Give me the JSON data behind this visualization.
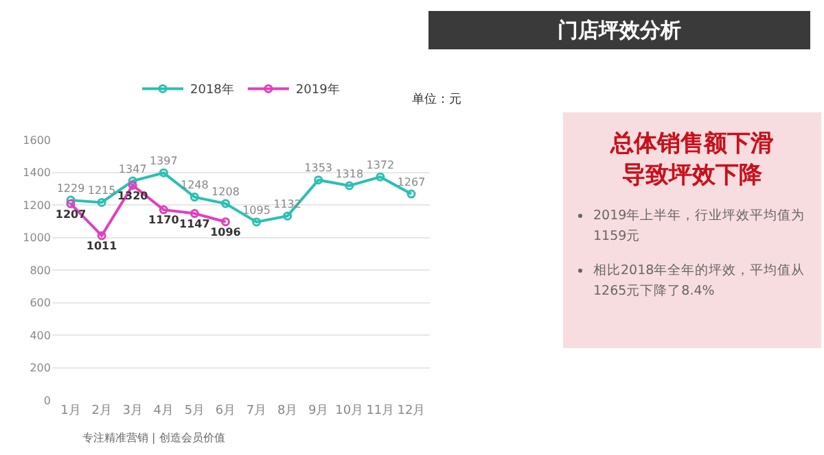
{
  "chart_data": {
    "type": "line",
    "title": "门店坪效分析",
    "categories": [
      "1月",
      "2月",
      "3月",
      "4月",
      "5月",
      "6月",
      "7月",
      "8月",
      "9月",
      "10月",
      "11月",
      "12月"
    ],
    "series": [
      {
        "name": "2018年",
        "color": "#2bbfb3",
        "values": [
          1229,
          1215,
          1347,
          1397,
          1248,
          1208,
          1095,
          1132,
          1353,
          1318,
          1372,
          1267
        ]
      },
      {
        "name": "2019年",
        "color": "#e040c0",
        "values": [
          1207,
          1011,
          1320,
          1170,
          1147,
          1096,
          null,
          null,
          null,
          null,
          null,
          null
        ]
      }
    ],
    "ylim": [
      0,
      1600
    ],
    "yticks": [
      0,
      200,
      400,
      600,
      800,
      1000,
      1200,
      1400,
      1600
    ],
    "grid": "y",
    "legend": "top",
    "marker": "circle",
    "line_style": "solid",
    "data_labels": true,
    "annotations": [
      "单位：元",
      "总体销售额下滑",
      "导致坪效下降",
      "2019年上半年，行业坪效平均值为1159元",
      "相比2018年全年的坪效，平均值从1265元下降了8.4%",
      "专注精准营销 | 创造会员价值"
    ]
  }
}
